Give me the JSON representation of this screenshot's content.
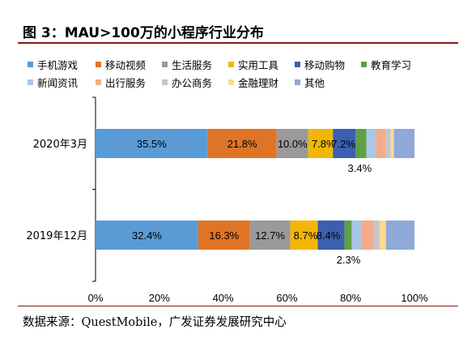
{
  "figure_title": "图 3：MAU>100万的小程序行业分布",
  "source": "数据来源：QuestMobile，广发证券发展研究中心",
  "chart_data": {
    "type": "bar",
    "orientation": "horizontal",
    "stacked": true,
    "percent": true,
    "title": "",
    "xlabel": "",
    "ylabel": "",
    "xlim": [
      0,
      100
    ],
    "x_ticks": [
      "0%",
      "20%",
      "40%",
      "60%",
      "80%",
      "100%"
    ],
    "legend_position": "top",
    "categories": [
      "2020年3月",
      "2019年12月"
    ],
    "series": [
      {
        "name": "手机游戏",
        "color": "#5b9bd5",
        "values": [
          35.5,
          32.4
        ],
        "labels": [
          "35.5%",
          "32.4%"
        ]
      },
      {
        "name": "移动视频",
        "color": "#e07426",
        "values": [
          21.8,
          16.3
        ],
        "labels": [
          "21.8%",
          "16.3%"
        ]
      },
      {
        "name": "生活服务",
        "color": "#9a9a9a",
        "values": [
          10.0,
          12.7
        ],
        "labels": [
          "10.0%",
          "12.7%"
        ]
      },
      {
        "name": "实用工具",
        "color": "#f2b705",
        "values": [
          7.8,
          8.7
        ],
        "labels": [
          "7.8%",
          "8.7%"
        ]
      },
      {
        "name": "移动购物",
        "color": "#3d5fb0",
        "values": [
          7.2,
          8.4
        ],
        "labels": [
          "7.2%",
          "8.4%"
        ]
      },
      {
        "name": "教育学习",
        "color": "#5fa046",
        "values": [
          3.4,
          2.3
        ],
        "labels": [
          "3.4%",
          "2.3%"
        ]
      },
      {
        "name": "新闻资讯",
        "color": "#a9c6e8",
        "values": [
          3.0,
          3.0
        ],
        "labels": [
          "",
          ""
        ]
      },
      {
        "name": "出行服务",
        "color": "#f4ab8c",
        "values": [
          3.0,
          4.0
        ],
        "labels": [
          "",
          ""
        ]
      },
      {
        "name": "办公商务",
        "color": "#c6c6c6",
        "values": [
          1.7,
          1.8
        ],
        "labels": [
          "",
          ""
        ]
      },
      {
        "name": "金融理财",
        "color": "#ffd98a",
        "values": [
          1.0,
          2.0
        ],
        "labels": [
          "",
          ""
        ]
      },
      {
        "name": "其他",
        "color": "#8fa9d9",
        "values": [
          6.5,
          9.0
        ],
        "labels": [
          "",
          ""
        ]
      }
    ]
  }
}
